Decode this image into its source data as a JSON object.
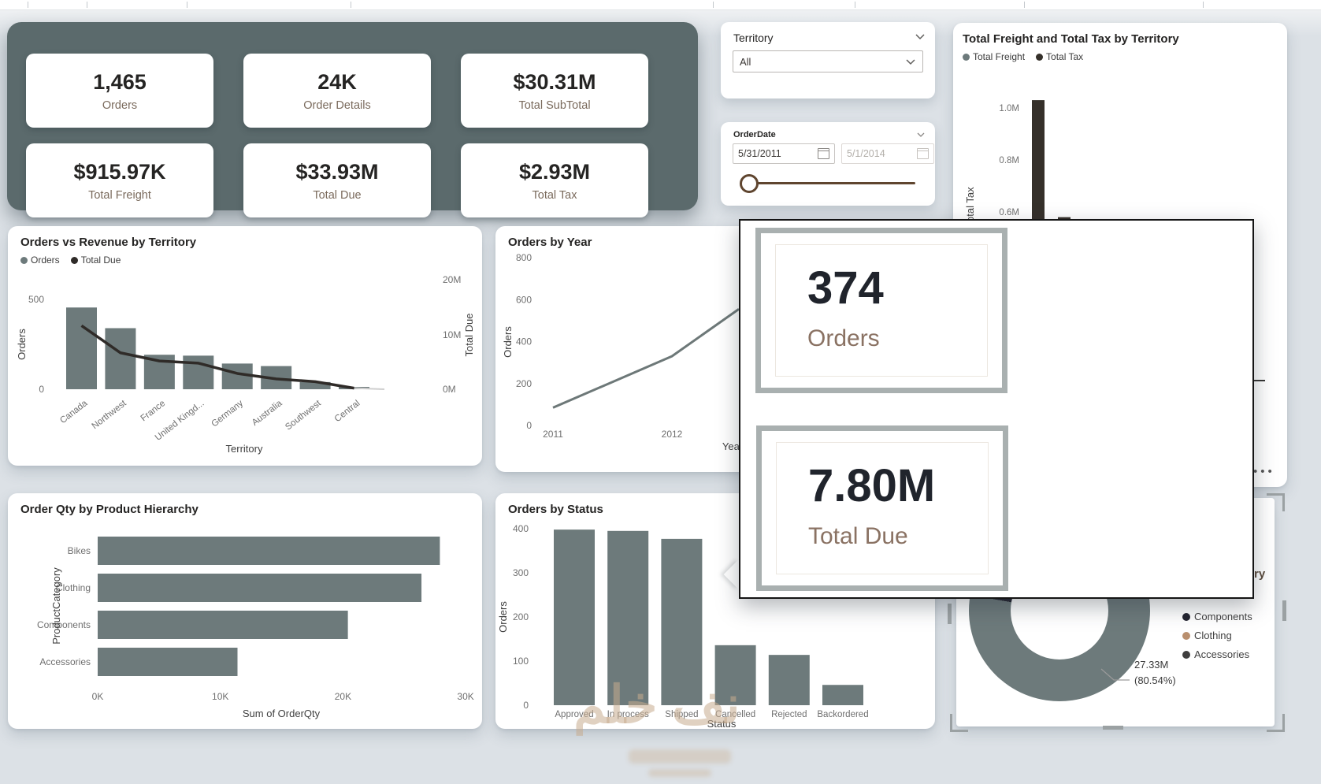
{
  "kpi_cards": [
    {
      "value": "1,465",
      "label": "Orders"
    },
    {
      "value": "24K",
      "label": "Order Details"
    },
    {
      "value": "$30.31M",
      "label": "Total SubTotal"
    },
    {
      "value": "$915.97K",
      "label": "Total Freight"
    },
    {
      "value": "$33.93M",
      "label": "Total Due"
    },
    {
      "value": "$2.93M",
      "label": "Total Tax"
    }
  ],
  "slicers": {
    "territory": {
      "label": "Territory",
      "value": "All"
    },
    "order_date": {
      "label": "OrderDate",
      "start_date": "5/31/2011",
      "end_date": "5/1/2014"
    }
  },
  "popup": {
    "cards": [
      {
        "value": "374",
        "label": "Orders"
      },
      {
        "value": "7.80M",
        "label": "Total Due"
      }
    ]
  },
  "watermark": {
    "text": "نف خلم"
  },
  "misc": {
    "panel_menu_ellipsis": "•••",
    "clipped_title_fragment": "ry"
  },
  "colors": {
    "background": "#dce1e6",
    "kpi_container": "#5b6a6c",
    "slate": "#6d7a7b",
    "dark": "#35302a",
    "line_dark": "#2f2b28",
    "tan": "#b98f6e",
    "label_brown": "#8a7263",
    "slider_brown": "#5f452f",
    "popup_border": "#141414",
    "selection": "#9ba1a3",
    "axis_text": "#6f6f6f",
    "axis_title": "#3f3f3f"
  },
  "chart_data": [
    {
      "id": "freight_tax",
      "type": "bar",
      "title": "Total Freight and Total Tax by Territory",
      "legend": [
        {
          "label": "Total Freight",
          "color": "#6d7a7b"
        },
        {
          "label": "Total Tax",
          "color": "#35302a"
        }
      ],
      "ylabel": "Total Freight and Total Tax",
      "yticks": [
        "1.0M",
        "0.8M",
        "0.6M"
      ],
      "visible_bars": [
        {
          "value_m": 1.03
        },
        {
          "value_m": 0.58
        }
      ]
    },
    {
      "id": "orders_vs_revenue",
      "type": "combo",
      "title": "Orders vs Revenue by Territory",
      "categories": [
        "Canada",
        "Northwest",
        "France",
        "United Kingd...",
        "Germany",
        "Australia",
        "Southwest",
        "Central"
      ],
      "bar_series": {
        "name": "Orders",
        "values": [
          455,
          340,
          192,
          187,
          143,
          129,
          40,
          13
        ]
      },
      "line_series": {
        "name": "Total Due",
        "values_m": [
          11.7,
          6.7,
          5.2,
          4.8,
          2.9,
          1.9,
          1.4,
          0.2
        ]
      },
      "y_left": {
        "label": "Orders",
        "ticks": [
          0,
          500
        ]
      },
      "y_right": {
        "label": "Total Due",
        "ticks": [
          "20M",
          "10M",
          "0M"
        ]
      },
      "xlabel": "Territory",
      "legend": [
        {
          "label": "Orders",
          "color": "#6d7a7b"
        },
        {
          "label": "Total Due",
          "color": "#2f2b28"
        }
      ]
    },
    {
      "id": "orders_by_year",
      "type": "line",
      "title": "Orders by Year",
      "x_ticks": [
        "2011",
        "2012"
      ],
      "values": [
        85,
        330
      ],
      "edge_value": 555,
      "ylabel": "Orders",
      "yticks": [
        0,
        200,
        400,
        600,
        800
      ],
      "xlabel": "Year"
    },
    {
      "id": "order_qty",
      "type": "bar-h",
      "title": "Order Qty by Product Hierarchy",
      "categories": [
        "Bikes",
        "Clothing",
        "Components",
        "Accessories"
      ],
      "values_k": [
        27.9,
        26.4,
        20.4,
        11.4
      ],
      "xticks": [
        "0K",
        "10K",
        "20K",
        "30K"
      ],
      "xlabel": "Sum of OrderQty",
      "ylabel": "ProductCategory"
    },
    {
      "id": "orders_by_status",
      "type": "bar",
      "title": "Orders by Status",
      "categories": [
        "Approved",
        "In process",
        "Shipped",
        "Cancelled",
        "Rejected",
        "Backordered"
      ],
      "values": [
        398,
        395,
        377,
        136,
        114,
        46
      ],
      "ylabel": "Orders",
      "xlabel": "Status",
      "yticks": [
        0,
        100,
        200,
        300,
        400
      ]
    },
    {
      "id": "donut",
      "type": "donut",
      "title_fragment": "ry",
      "legend": [
        {
          "label": "Components",
          "color": "#23242f"
        },
        {
          "label": "Clothing",
          "color": "#b98f6e"
        },
        {
          "label": "Accessories",
          "color": "#3f3e3e"
        }
      ],
      "main_slice": {
        "color": "#6d7a7b",
        "percent": 80.54
      },
      "callout": {
        "value": "27.33M",
        "percent_label": "(80.54%)"
      }
    }
  ]
}
